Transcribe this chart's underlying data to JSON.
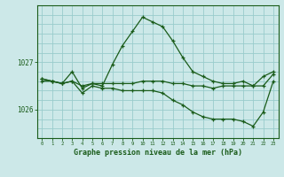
{
  "bg_color": "#cce8e8",
  "grid_color": "#99cccc",
  "line_color": "#1a5c1a",
  "title": "Graphe pression niveau de la mer (hPa)",
  "ylabel_ticks": [
    1026,
    1027
  ],
  "xlim": [
    -0.5,
    23.5
  ],
  "ylim": [
    1025.4,
    1028.2
  ],
  "line1_x": [
    0,
    1,
    2,
    3,
    4,
    5,
    6,
    7,
    8,
    9,
    10,
    11,
    12,
    13,
    14,
    15,
    16,
    17,
    18,
    19,
    20,
    21,
    22,
    23
  ],
  "line1_y": [
    1026.65,
    1026.6,
    1026.55,
    1026.8,
    1026.45,
    1026.55,
    1026.5,
    1026.95,
    1027.35,
    1027.65,
    1027.95,
    1027.85,
    1027.75,
    1027.45,
    1027.1,
    1026.8,
    1026.7,
    1026.6,
    1026.55,
    1026.55,
    1026.6,
    1026.5,
    1026.7,
    1026.8
  ],
  "line2_x": [
    0,
    1,
    2,
    3,
    4,
    5,
    6,
    7,
    8,
    9,
    10,
    11,
    12,
    13,
    14,
    15,
    16,
    17,
    18,
    19,
    20,
    21,
    22,
    23
  ],
  "line2_y": [
    1026.6,
    1026.6,
    1026.55,
    1026.6,
    1026.5,
    1026.55,
    1026.55,
    1026.55,
    1026.55,
    1026.55,
    1026.6,
    1026.6,
    1026.6,
    1026.55,
    1026.55,
    1026.5,
    1026.5,
    1026.45,
    1026.5,
    1026.5,
    1026.5,
    1026.5,
    1026.5,
    1026.75
  ],
  "line3_x": [
    0,
    1,
    2,
    3,
    4,
    5,
    6,
    7,
    8,
    9,
    10,
    11,
    12,
    13,
    14,
    15,
    16,
    17,
    18,
    19,
    20,
    21,
    22,
    23
  ],
  "line3_y": [
    1026.65,
    1026.6,
    1026.55,
    1026.6,
    1026.35,
    1026.5,
    1026.45,
    1026.45,
    1026.4,
    1026.4,
    1026.4,
    1026.4,
    1026.35,
    1026.2,
    1026.1,
    1025.95,
    1025.85,
    1025.8,
    1025.8,
    1025.8,
    1025.75,
    1025.65,
    1025.95,
    1026.6
  ]
}
